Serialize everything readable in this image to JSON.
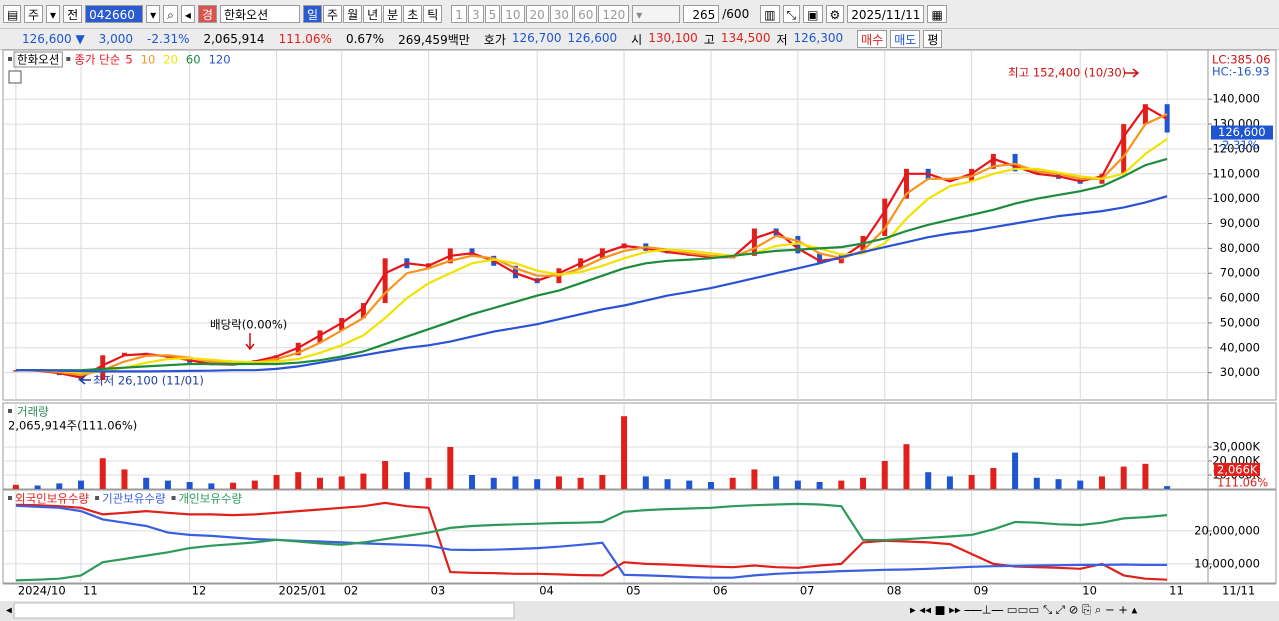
{
  "toolbar": {
    "period_type": "주",
    "mode": "전",
    "code": "042660",
    "badge": "경",
    "name": "한화오션",
    "intervals": [
      "일",
      "주",
      "월",
      "년",
      "분",
      "초",
      "틱"
    ],
    "steps": [
      "1",
      "3",
      "5",
      "10",
      "20",
      "30",
      "60",
      "120"
    ],
    "count": "265",
    "max": "/600",
    "date": "2025/11/11"
  },
  "quote": {
    "price": "126,600",
    "change": "3,000",
    "change_pct": "-2.31%",
    "volume": "2,065,914",
    "volume_ratio": "111.06%",
    "turnover": "0.67%",
    "amount": "269,459백만",
    "ask_label": "호가",
    "ask": "126,700",
    "bid": "126,600",
    "open_label": "시",
    "open": "130,100",
    "high_label": "고",
    "high": "134,500",
    "low_label": "저",
    "low": "126,300",
    "buttons": [
      "매수",
      "매도",
      "평"
    ]
  },
  "chart_data": [
    {
      "type": "candlestick",
      "title": "한화오션",
      "legend_prefix": "종가 단순",
      "up_color": "#e0201b",
      "down_color": "#1f55d0",
      "categories": [
        "2024/10",
        null,
        null,
        "11",
        null,
        null,
        null,
        null,
        "12",
        null,
        null,
        null,
        "2025/01",
        null,
        null,
        "02",
        null,
        null,
        null,
        "03",
        null,
        null,
        null,
        null,
        "04",
        null,
        null,
        null,
        "05",
        null,
        null,
        null,
        "06",
        null,
        null,
        null,
        "07",
        null,
        null,
        null,
        "08",
        null,
        null,
        null,
        "09",
        null,
        null,
        null,
        null,
        "10",
        null,
        null,
        null,
        "11"
      ],
      "x_end_label": "11/11",
      "values": [
        31000,
        30500,
        29000,
        27000,
        37000,
        38000,
        37000,
        36000,
        34000,
        33000,
        33500,
        35000,
        37000,
        42000,
        47000,
        52000,
        58000,
        76000,
        72000,
        74000,
        80000,
        77000,
        73000,
        68000,
        66000,
        72000,
        76000,
        80000,
        82000,
        79000,
        78000,
        77000,
        76000,
        77000,
        88000,
        85000,
        78000,
        74000,
        78000,
        85000,
        100000,
        112000,
        108000,
        107000,
        112000,
        118000,
        111000,
        110000,
        108000,
        106000,
        110000,
        130000,
        138000,
        126600
      ],
      "series": [
        {
          "name": "5",
          "color": "#e8141b",
          "values": [
            31000,
            30800,
            29800,
            28000,
            33000,
            37000,
            37500,
            36500,
            35000,
            33500,
            33200,
            34500,
            36500,
            40000,
            45000,
            50000,
            56000,
            70000,
            74000,
            73000,
            77000,
            78000,
            75000,
            70000,
            67000,
            70000,
            74000,
            78000,
            81000,
            80000,
            78500,
            77500,
            76500,
            76500,
            84000,
            87000,
            80000,
            75000,
            76000,
            82000,
            95000,
            110000,
            110000,
            107000,
            110000,
            116000,
            113000,
            110000,
            109000,
            107000,
            109000,
            125000,
            137000,
            132000
          ]
        },
        {
          "name": "10",
          "color": "#f7941d",
          "values": [
            31000,
            30900,
            30200,
            29000,
            31000,
            34500,
            36800,
            37000,
            36000,
            34500,
            33500,
            34000,
            35500,
            38000,
            42000,
            47000,
            52000,
            62000,
            70000,
            72000,
            75000,
            77000,
            76000,
            72000,
            69000,
            69000,
            72000,
            76000,
            79000,
            80500,
            79500,
            78000,
            77000,
            76500,
            80000,
            85000,
            83000,
            78000,
            76000,
            79000,
            88000,
            102000,
            108000,
            108000,
            109000,
            113000,
            114000,
            111000,
            110000,
            108000,
            108000,
            117000,
            130000,
            134000
          ]
        },
        {
          "name": "20",
          "color": "#f2e200",
          "values": [
            31000,
            31000,
            30700,
            30000,
            30500,
            32000,
            34000,
            35500,
            35800,
            35200,
            34500,
            34200,
            34500,
            35500,
            38000,
            41000,
            45000,
            52000,
            60000,
            66000,
            70000,
            74000,
            75500,
            74000,
            71000,
            69500,
            70500,
            73000,
            76000,
            78500,
            79500,
            79000,
            78000,
            77000,
            78000,
            81000,
            82000,
            80000,
            77500,
            78000,
            82000,
            92000,
            100000,
            105000,
            107000,
            110000,
            112000,
            112000,
            110500,
            109000,
            108000,
            110000,
            118000,
            124000
          ]
        },
        {
          "name": "60",
          "color": "#1c8c3c",
          "values": [
            31000,
            31000,
            31000,
            31000,
            31500,
            32000,
            32500,
            33000,
            33500,
            33500,
            33500,
            33500,
            33500,
            34000,
            35000,
            36500,
            38500,
            41500,
            44500,
            47500,
            50500,
            53500,
            56000,
            58500,
            61000,
            63000,
            66000,
            69000,
            72000,
            74000,
            75000,
            75500,
            76000,
            77000,
            78000,
            79000,
            79500,
            80000,
            80500,
            82000,
            84000,
            87000,
            89500,
            91500,
            93500,
            95500,
            98000,
            100000,
            101500,
            103000,
            105000,
            109000,
            113500,
            116000
          ]
        },
        {
          "name": "120",
          "color": "#2a52d4",
          "values": [
            31000,
            31000,
            30800,
            30600,
            30500,
            30500,
            30500,
            30600,
            30700,
            30800,
            31000,
            31000,
            31500,
            32500,
            34000,
            35500,
            37000,
            38500,
            40000,
            41000,
            42500,
            44500,
            46500,
            48000,
            49500,
            51500,
            53500,
            55500,
            57000,
            59000,
            61000,
            62500,
            64000,
            66000,
            68000,
            70000,
            72000,
            74000,
            76500,
            78500,
            80500,
            82500,
            84500,
            86000,
            87000,
            88500,
            90000,
            91500,
            93000,
            94000,
            95000,
            96500,
            98500,
            101000
          ]
        }
      ],
      "ylim": [
        19000,
        159000
      ],
      "yticks": [
        {
          "value": 30000,
          "label": "30,000"
        },
        {
          "value": 40000,
          "label": "40,000"
        },
        {
          "value": 50000,
          "label": "50,000"
        },
        {
          "value": 60000,
          "label": "60,000"
        },
        {
          "value": 70000,
          "label": "70,000"
        },
        {
          "value": 80000,
          "label": "80,000"
        },
        {
          "value": 90000,
          "label": "90,000"
        },
        {
          "value": 100000,
          "label": "100,000"
        },
        {
          "value": 110000,
          "label": "110,000"
        },
        {
          "value": 120000,
          "label": "120,000"
        },
        {
          "value": 130000,
          "label": "130,000"
        },
        {
          "value": 140000,
          "label": "140,000"
        }
      ],
      "grid": true,
      "high_annotation": "최고 152,400 (10/30)",
      "low_annotation": "최저 26,100 (11/01)",
      "dividend_annotation": "배당락(0.00%)",
      "lc_label": "LC:385.06",
      "hc_label": "HC:-16.93",
      "last_label": "126,600",
      "last_change": "-2.31%"
    },
    {
      "type": "bar",
      "title": "거래량",
      "subtitle": "2,065,914주(111.06%)",
      "values": [
        3000,
        2500,
        4000,
        6000,
        22000,
        14000,
        8000,
        6000,
        5000,
        4000,
        4500,
        6000,
        10000,
        12000,
        8000,
        9000,
        11000,
        20000,
        12000,
        8000,
        30000,
        10000,
        8000,
        9000,
        7000,
        9000,
        8000,
        10000,
        52000,
        9000,
        7000,
        6000,
        5000,
        8000,
        14000,
        9000,
        6000,
        5000,
        6000,
        8000,
        20000,
        32000,
        12000,
        9000,
        10000,
        15000,
        26000,
        8000,
        7000,
        6000,
        9000,
        16000,
        18000,
        2066
      ],
      "ylim": [
        0,
        60000
      ],
      "yticks": [
        {
          "value": 10000,
          "label": "10,000K"
        },
        {
          "value": 20000,
          "label": "20,000K"
        },
        {
          "value": 30000,
          "label": "30,000K"
        }
      ],
      "last_label": "2,066K",
      "last_ratio": "111.06%"
    },
    {
      "type": "line",
      "series": [
        {
          "name": "외국인보유수량",
          "color": "#e0201b",
          "values": [
            27900000,
            27800000,
            27500000,
            27000000,
            25000000,
            25500000,
            26000000,
            25500000,
            25000000,
            25000000,
            24800000,
            25000000,
            25500000,
            26000000,
            26500000,
            27000000,
            27500000,
            28500000,
            27500000,
            27000000,
            7500000,
            7300000,
            7200000,
            7000000,
            7000000,
            6800000,
            6600000,
            6500000,
            10500000,
            10000000,
            9800000,
            9500000,
            9200000,
            9000000,
            9500000,
            9000000,
            8800000,
            9500000,
            10000000,
            16500000,
            17000000,
            16800000,
            16500000,
            16000000,
            13000000,
            10000000,
            9200000,
            9000000,
            8800000,
            8500000,
            10000000,
            6500000,
            5500000,
            5200000
          ]
        },
        {
          "name": "기관보유수량",
          "color": "#3a5fe0",
          "values": [
            27600000,
            27300000,
            27000000,
            26000000,
            23500000,
            22500000,
            21500000,
            19500000,
            18800000,
            18500000,
            18000000,
            17500000,
            17300000,
            17000000,
            16800000,
            16500000,
            16200000,
            16000000,
            15800000,
            15500000,
            14300000,
            14200000,
            14300000,
            14500000,
            14800000,
            15200000,
            15800000,
            16400000,
            6700000,
            6500000,
            6300000,
            6000000,
            5800000,
            5800000,
            6500000,
            7000000,
            7300000,
            7500000,
            7800000,
            8000000,
            8200000,
            8300000,
            8500000,
            8800000,
            9100000,
            9300000,
            9400000,
            9500000,
            9600000,
            9700000,
            9700000,
            9800000,
            9700000,
            9700000
          ]
        },
        {
          "name": "개인보유수량",
          "color": "#2e9a5a",
          "values": [
            5000000,
            5200000,
            5500000,
            6500000,
            10500000,
            11500000,
            12500000,
            13500000,
            14800000,
            15500000,
            16000000,
            16500000,
            17300000,
            16800000,
            16200000,
            15800000,
            16500000,
            17500000,
            18500000,
            19500000,
            20900000,
            21500000,
            21800000,
            22000000,
            22200000,
            22400000,
            22500000,
            22700000,
            25800000,
            26300000,
            26600000,
            26800000,
            27000000,
            27500000,
            27800000,
            28000000,
            28200000,
            28000000,
            27500000,
            17300000,
            17200000,
            17500000,
            17900000,
            18300000,
            18800000,
            20500000,
            22700000,
            22500000,
            22000000,
            21800000,
            22500000,
            23800000,
            24200000,
            24800000
          ]
        }
      ],
      "ylim": [
        4200000,
        31800000
      ],
      "yticks": [
        {
          "value": 10000000,
          "label": "10,000,000"
        },
        {
          "value": 20000000,
          "label": "20,000,000"
        }
      ]
    }
  ]
}
